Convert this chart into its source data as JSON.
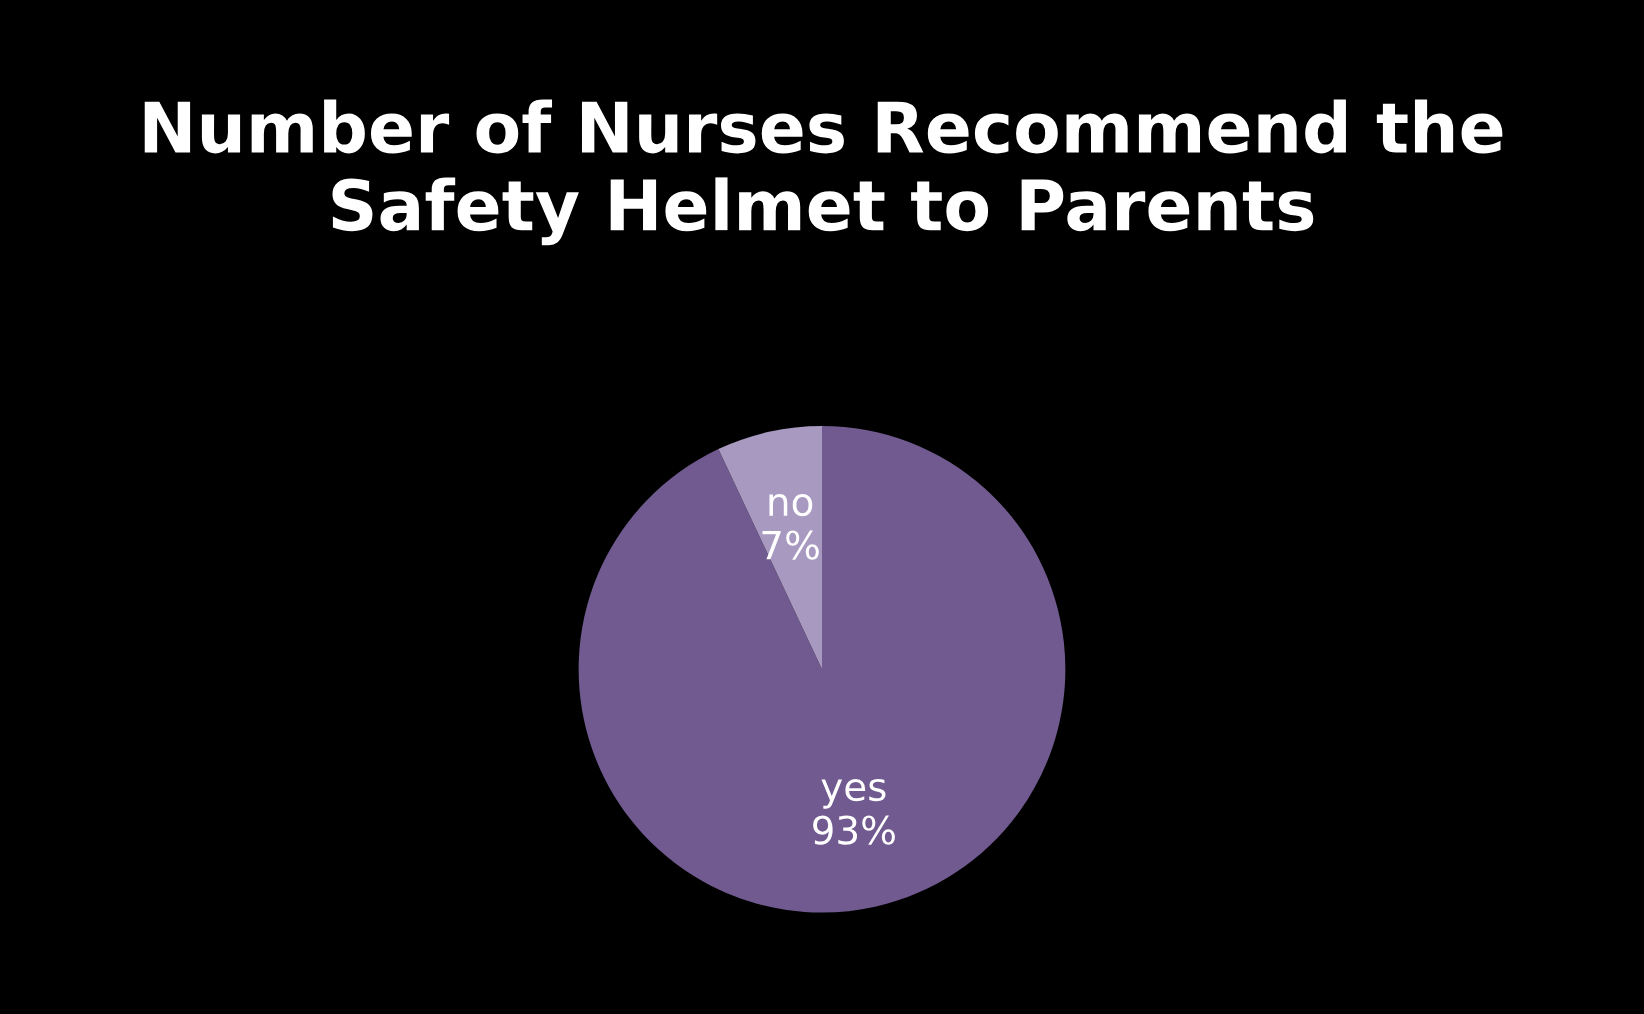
{
  "chart_data": {
    "type": "pie",
    "title": "Number of Nurses Recommend the Safety Helmet to Parents",
    "categories": [
      "yes",
      "no"
    ],
    "values": [
      93,
      7
    ],
    "value_labels": [
      "93%",
      "7%"
    ],
    "colors": [
      "#705a8f",
      "#a899c0"
    ],
    "legend": false
  }
}
